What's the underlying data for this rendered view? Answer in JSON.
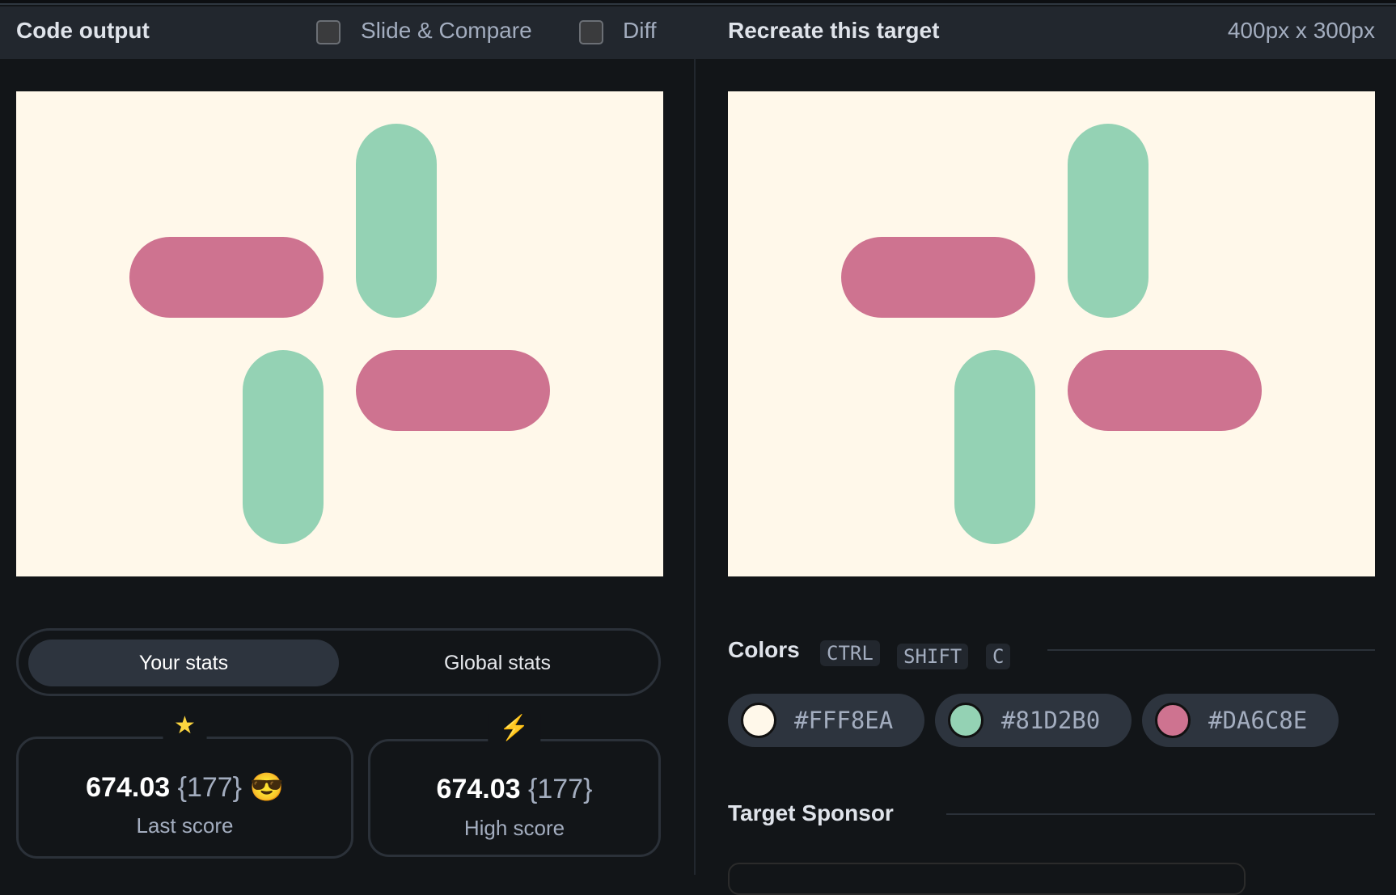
{
  "left_panel": {
    "title": "Code output",
    "slide_compare_label": "Slide & Compare",
    "diff_label": "Diff"
  },
  "right_panel": {
    "title": "Recreate this target",
    "dimensions": "400px x 300px"
  },
  "shapes": {
    "background": "#FFF8EA",
    "pink": "#CE7390",
    "green": "#94D2B4"
  },
  "stats": {
    "tabs": [
      "Your stats",
      "Global stats"
    ],
    "last": {
      "score": "674.03",
      "count": "{177}",
      "emoji": "😎",
      "label": "Last score",
      "icon": "★"
    },
    "high": {
      "score": "674.03",
      "count": "{177}",
      "label": "High score",
      "icon": "⚡"
    }
  },
  "colors": {
    "title": "Colors",
    "shortcut": [
      "CTRL",
      "SHIFT",
      "C"
    ],
    "swatches": [
      {
        "hex": "#FFF8EA"
      },
      {
        "hex": "#81D2B0"
      },
      {
        "hex": "#DA6C8E"
      }
    ]
  },
  "sponsor": {
    "title": "Target Sponsor"
  }
}
